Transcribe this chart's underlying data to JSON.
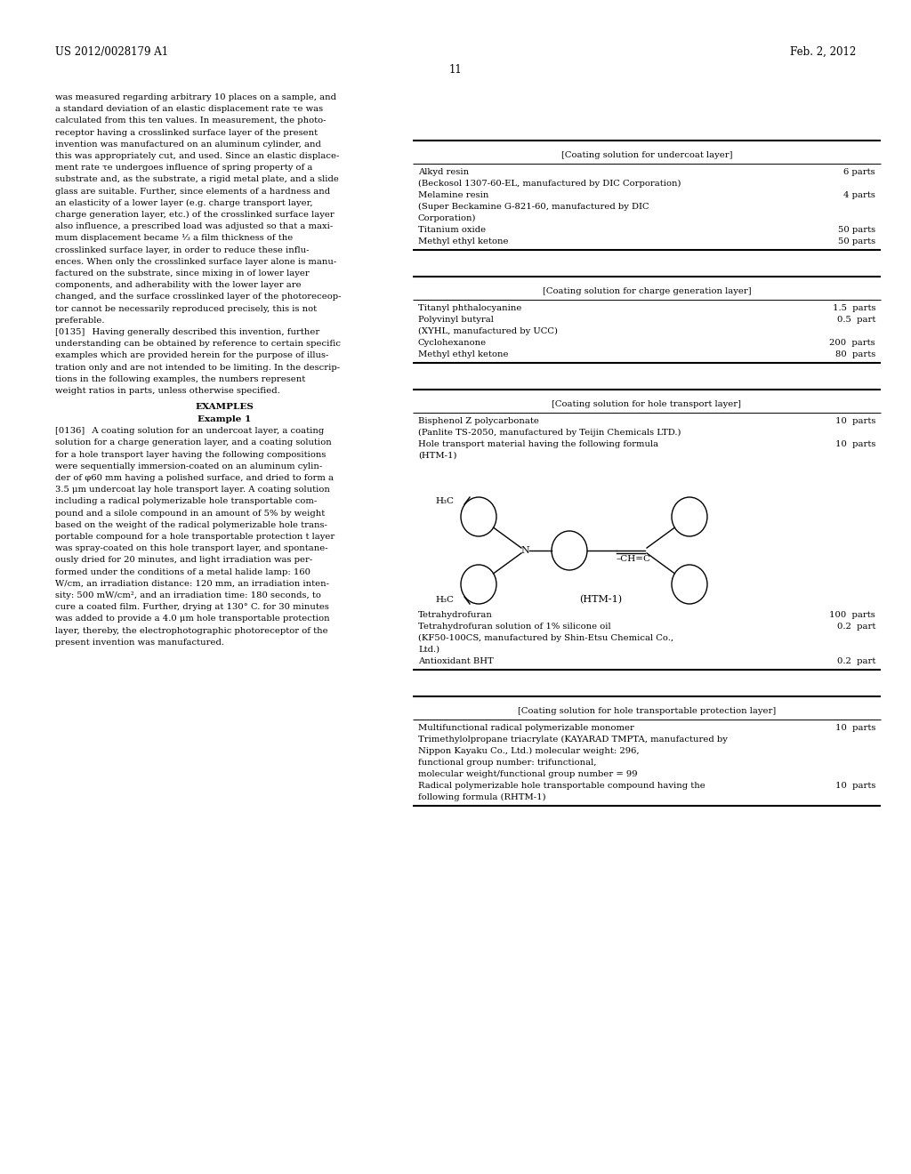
{
  "bg_color": "#ffffff",
  "header_left": "US 2012/0028179 A1",
  "header_right": "Feb. 2, 2012",
  "page_number": "11",
  "left_col_text": [
    "was measured regarding arbitrary 10 places on a sample, and",
    "a standard deviation of an elastic displacement rate τe was",
    "calculated from this ten values. In measurement, the photo-",
    "receptor having a crosslinked surface layer of the present",
    "invention was manufactured on an aluminum cylinder, and",
    "this was appropriately cut, and used. Since an elastic displace-",
    "ment rate τe undergoes influence of spring property of a",
    "substrate and, as the substrate, a rigid metal plate, and a slide",
    "glass are suitable. Further, since elements of a hardness and",
    "an elasticity of a lower layer (e.g. charge transport layer,",
    "charge generation layer, etc.) of the crosslinked surface layer",
    "also influence, a prescribed load was adjusted so that a maxi-",
    "mum displacement became ⅓ a film thickness of the",
    "crosslinked surface layer, in order to reduce these influ-",
    "ences. When only the crosslinked surface layer alone is manu-",
    "factured on the substrate, since mixing in of lower layer",
    "components, and adherability with the lower layer are",
    "changed, and the surface crosslinked layer of the photoreceop-",
    "tor cannot be necessarily reproduced precisely, this is not",
    "preferable.",
    "[0135]  Having generally described this invention, further",
    "understanding can be obtained by reference to certain specific",
    "examples which are provided herein for the purpose of illus-",
    "tration only and are not intended to be limiting. In the descrip-",
    "tions in the following examples, the numbers represent",
    "weight ratios in parts, unless otherwise specified."
  ],
  "examples_header": "EXAMPLES",
  "example1_header": "Example 1",
  "example1_text": [
    "[0136]  A coating solution for an undercoat layer, a coating",
    "solution for a charge generation layer, and a coating solution",
    "for a hole transport layer having the following compositions",
    "were sequentially immersion-coated on an aluminum cylin-",
    "der of φ60 mm having a polished surface, and dried to form a",
    "3.5 μm undercoat lay hole transport layer. A coating solution",
    "including a radical polymerizable hole transportable com-",
    "pound and a silole compound in an amount of 5% by weight",
    "based on the weight of the radical polymerizable hole trans-",
    "portable compound for a hole transportable protection t layer",
    "was spray-coated on this hole transport layer, and spontane-",
    "ously dried for 20 minutes, and light irradiation was per-",
    "formed under the conditions of a metal halide lamp: 160",
    "W/cm, an irradiation distance: 120 mm, an irradiation inten-",
    "sity: 500 mW/cm², and an irradiation time: 180 seconds, to",
    "cure a coated film. Further, drying at 130° C. for 30 minutes",
    "was added to provide a 4.0 μm hole transportable protection",
    "layer, thereby, the electrophotographic photoreceptor of the",
    "present invention was manufactured."
  ],
  "table1_title": "[Coating solution for undercoat layer]",
  "table1_rows": [
    [
      "Alkyd resin",
      "6 parts"
    ],
    [
      "(Beckosol 1307-60-EL, manufactured by DIC Corporation)",
      ""
    ],
    [
      "Melamine resin",
      "4 parts"
    ],
    [
      "(Super Beckamine G-821-60, manufactured by DIC",
      ""
    ],
    [
      "Corporation)",
      ""
    ],
    [
      "Titanium oxide",
      "50 parts"
    ],
    [
      "Methyl ethyl ketone",
      "50 parts"
    ]
  ],
  "table2_title": "[Coating solution for charge generation layer]",
  "table2_rows": [
    [
      "Titanyl phthalocyanine",
      "1.5  parts"
    ],
    [
      "Polyvinyl butyral",
      "0.5  part"
    ],
    [
      "(XYHL, manufactured by UCC)",
      ""
    ],
    [
      "Cyclohexanone",
      "200  parts"
    ],
    [
      "Methyl ethyl ketone",
      "80  parts"
    ]
  ],
  "table3_title": "[Coating solution for hole transport layer]",
  "table3_rows": [
    [
      "Bisphenol Z polycarbonate",
      "10  parts"
    ],
    [
      "(Panlite TS-2050, manufactured by Teijin Chemicals LTD.)",
      ""
    ],
    [
      "Hole transport material having the following formula",
      "10  parts"
    ],
    [
      "(HTM-1)",
      ""
    ]
  ],
  "htm1_label": "(HTM-1)",
  "table3b_rows": [
    [
      "Tetrahydrofuran",
      "100  parts"
    ],
    [
      "Tetrahydrofuran solution of 1% silicone oil",
      "0.2  part"
    ],
    [
      "(KF50-100CS, manufactured by Shin-Etsu Chemical Co.,",
      ""
    ],
    [
      "Ltd.)",
      ""
    ],
    [
      "Antioxidant BHT",
      "0.2  part"
    ]
  ],
  "table4_title": "[Coating solution for hole transportable protection layer]",
  "table4_rows": [
    [
      "Multifunctional radical polymerizable monomer",
      "10  parts"
    ],
    [
      "Trimethylolpropane triacrylate (KAYARAD TMPTA, manufactured by",
      ""
    ],
    [
      "Nippon Kayaku Co., Ltd.) molecular weight: 296,",
      ""
    ],
    [
      "functional group number: trifunctional,",
      ""
    ],
    [
      "molecular weight/functional group number = 99",
      ""
    ],
    [
      "Radical polymerizable hole transportable compound having the",
      "10  parts"
    ],
    [
      "following formula (RHTM-1)",
      ""
    ]
  ]
}
